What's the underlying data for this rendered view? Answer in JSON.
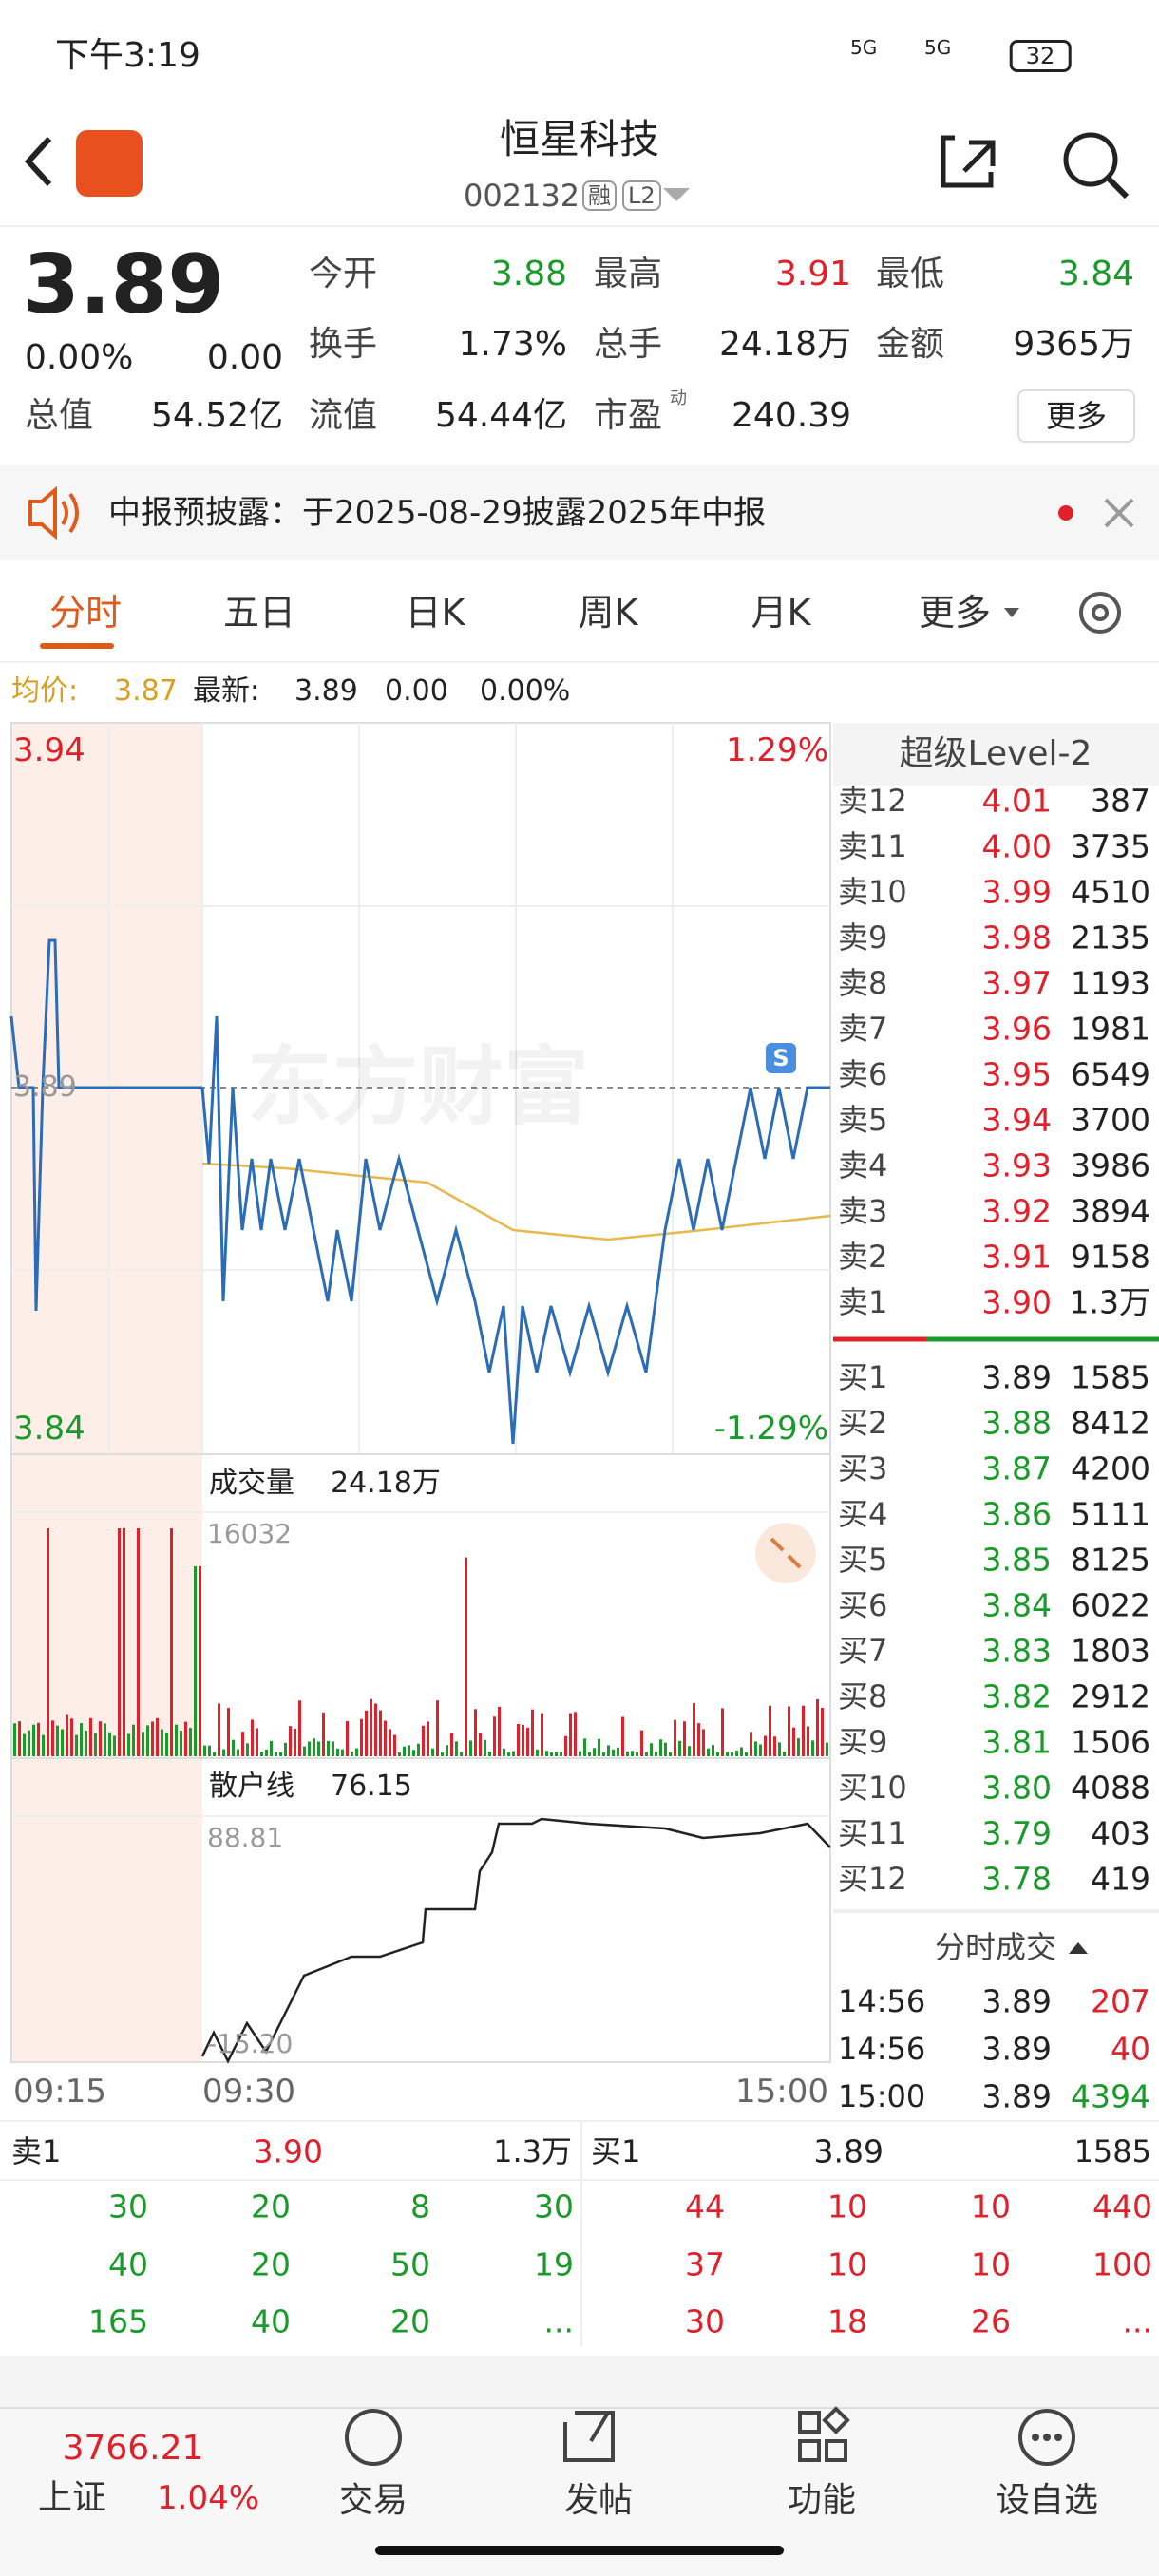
{
  "status": {
    "time": "下午3:19",
    "network": [
      "5G",
      "5G"
    ],
    "battery": "32"
  },
  "header": {
    "title": "恒星科技",
    "code": "002132",
    "tags": [
      "融",
      "L2"
    ]
  },
  "quote": {
    "price": "3.89",
    "change_pct": "0.00%",
    "change": "0.00",
    "fields": [
      {
        "label": "今开",
        "value": "3.88",
        "color": "#1a9a2a"
      },
      {
        "label": "最高",
        "value": "3.91",
        "color": "#e0202a"
      },
      {
        "label": "最低",
        "value": "3.84",
        "color": "#1a9a2a"
      },
      {
        "label": "换手",
        "value": "1.73%",
        "color": "#222"
      },
      {
        "label": "总手",
        "value": "24.18万",
        "color": "#222"
      },
      {
        "label": "金额",
        "value": "9365万",
        "color": "#222"
      },
      {
        "label": "总值",
        "value": "54.52亿",
        "color": "#222"
      },
      {
        "label": "流值",
        "value": "54.44亿",
        "color": "#222"
      },
      {
        "label": "市盈",
        "value": "240.39",
        "color": "#222",
        "sup": "动"
      }
    ],
    "more": "更多"
  },
  "notice": "中报预披露：于2025-08-29披露2025年中报",
  "tabs": [
    "分时",
    "五日",
    "日K",
    "周K",
    "月K",
    "更多"
  ],
  "avg_bar": {
    "avg_label": "均价:",
    "avg": "3.87",
    "latest_label": "最新:",
    "latest": "3.89",
    "change": "0.00",
    "change_pct": "0.00%"
  },
  "chart": {
    "y_top": "3.94",
    "y_bottom": "3.84",
    "pct_top": "1.29%",
    "pct_bottom": "-1.29%",
    "ref": "3.89",
    "watermark": "东方财富",
    "marker": "S",
    "volume_label": "成交量",
    "volume_total": "24.18万",
    "volume_max": "16032",
    "retail_label": "散户线",
    "retail_value": "76.15",
    "retail_max": "88.81",
    "retail_min": "-15.20",
    "times": [
      "09:15",
      "09:30",
      "15:00"
    ]
  },
  "level2": {
    "title": "超级Level-2",
    "asks": [
      {
        "label": "卖12",
        "price": "4.01",
        "volume": "387"
      },
      {
        "label": "卖11",
        "price": "4.00",
        "volume": "3735"
      },
      {
        "label": "卖10",
        "price": "3.99",
        "volume": "4510"
      },
      {
        "label": "卖9",
        "price": "3.98",
        "volume": "2135"
      },
      {
        "label": "卖8",
        "price": "3.97",
        "volume": "1193"
      },
      {
        "label": "卖7",
        "price": "3.96",
        "volume": "1981"
      },
      {
        "label": "卖6",
        "price": "3.95",
        "volume": "6549"
      },
      {
        "label": "卖5",
        "price": "3.94",
        "volume": "3700"
      },
      {
        "label": "卖4",
        "price": "3.93",
        "volume": "3986"
      },
      {
        "label": "卖3",
        "price": "3.92",
        "volume": "3894"
      },
      {
        "label": "卖2",
        "price": "3.91",
        "volume": "9158"
      },
      {
        "label": "卖1",
        "price": "3.90",
        "volume": "1.3万"
      }
    ],
    "bids": [
      {
        "label": "买1",
        "price": "3.89",
        "volume": "1585",
        "color": "#222"
      },
      {
        "label": "买2",
        "price": "3.88",
        "volume": "8412",
        "color": "#1a9a2a"
      },
      {
        "label": "买3",
        "price": "3.87",
        "volume": "4200",
        "color": "#1a9a2a"
      },
      {
        "label": "买4",
        "price": "3.86",
        "volume": "5111",
        "color": "#1a9a2a"
      },
      {
        "label": "买5",
        "price": "3.85",
        "volume": "8125",
        "color": "#1a9a2a"
      },
      {
        "label": "买6",
        "price": "3.84",
        "volume": "6022",
        "color": "#1a9a2a"
      },
      {
        "label": "买7",
        "price": "3.83",
        "volume": "1803",
        "color": "#1a9a2a"
      },
      {
        "label": "买8",
        "price": "3.82",
        "volume": "2912",
        "color": "#1a9a2a"
      },
      {
        "label": "买9",
        "price": "3.81",
        "volume": "1506",
        "color": "#1a9a2a"
      },
      {
        "label": "买10",
        "price": "3.80",
        "volume": "4088",
        "color": "#1a9a2a"
      },
      {
        "label": "买11",
        "price": "3.79",
        "volume": "403",
        "color": "#1a9a2a"
      },
      {
        "label": "买12",
        "price": "3.78",
        "volume": "419",
        "color": "#1a9a2a"
      }
    ],
    "trades_title": "分时成交",
    "trades": [
      {
        "time": "14:56",
        "price": "3.89",
        "volume": "207",
        "color": "#e0202a"
      },
      {
        "time": "14:56",
        "price": "3.89",
        "volume": "40",
        "color": "#e0202a"
      },
      {
        "time": "15:00",
        "price": "3.89",
        "volume": "4394",
        "color": "#1a9a2a"
      }
    ]
  },
  "queue": {
    "ask": {
      "label": "卖1",
      "price": "3.90",
      "volume": "1.3万"
    },
    "bid": {
      "label": "买1",
      "price": "3.89",
      "volume": "1585"
    },
    "ask_rows": [
      [
        "30",
        "20",
        "8",
        "30"
      ],
      [
        "40",
        "20",
        "50",
        "19"
      ],
      [
        "165",
        "40",
        "20",
        "..."
      ]
    ],
    "bid_rows": [
      [
        "44",
        "10",
        "10",
        "440"
      ],
      [
        "37",
        "10",
        "10",
        "100"
      ],
      [
        "30",
        "18",
        "26",
        "..."
      ]
    ]
  },
  "nav": {
    "index": {
      "name": "上证",
      "value": "3766.21",
      "pct": "1.04%"
    },
    "items": [
      "交易",
      "发帖",
      "功能",
      "设自选"
    ]
  }
}
